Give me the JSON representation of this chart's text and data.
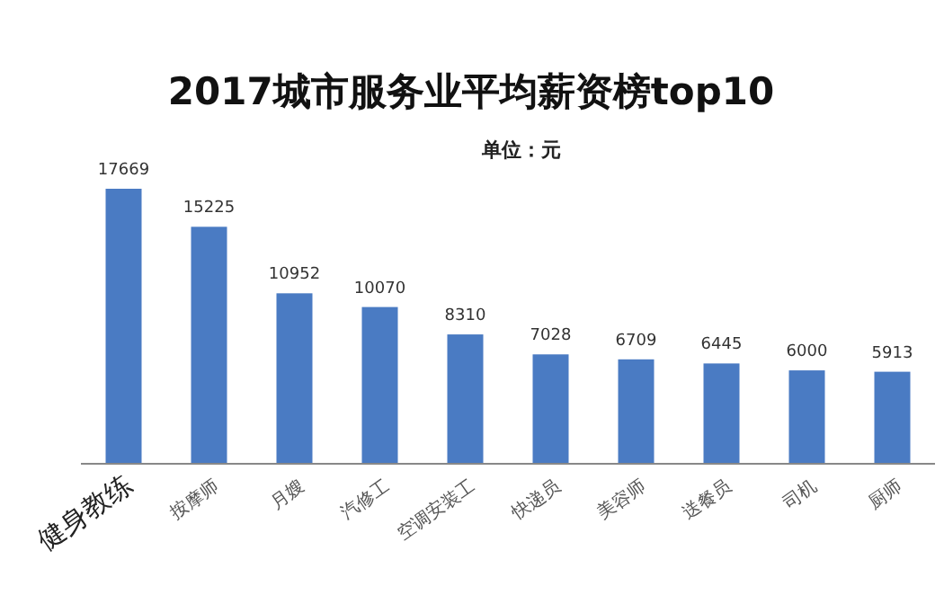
{
  "chart_data": {
    "type": "bar",
    "title": "2017城市服务业平均薪资榜top10",
    "subtitle": "单位：元",
    "categories": [
      "健身教练",
      "按摩师",
      "月嫂",
      "汽修工",
      "空调安装工",
      "快递员",
      "美容师",
      "送餐员",
      "司机",
      "厨师"
    ],
    "values": [
      17669,
      15225,
      10952,
      10070,
      8310,
      7028,
      6709,
      6445,
      6000,
      5913
    ],
    "color": "#4a7bc3",
    "data_labels": true
  }
}
